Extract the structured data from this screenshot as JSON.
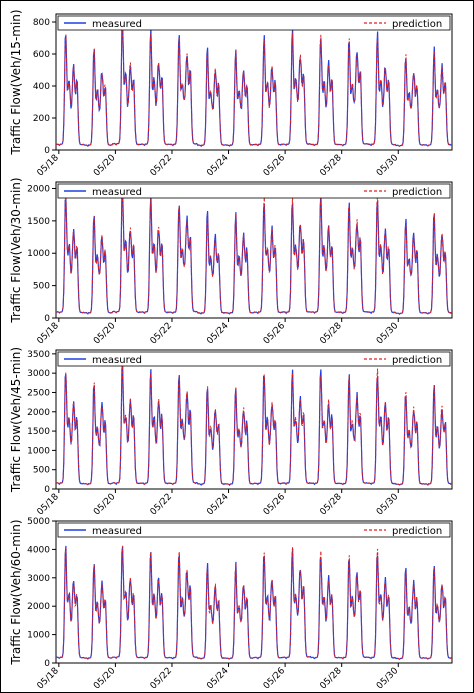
{
  "figure": {
    "border_color": "#000000",
    "measured_color": "#1f3fe0",
    "prediction_color": "#e02020"
  },
  "chart_data": [
    {
      "type": "line",
      "ylabel": "Traffic Flow(Veh/15-min)",
      "ylim": [
        0,
        850
      ],
      "yticks": [
        0,
        200,
        400,
        600,
        800
      ],
      "x_tick_labels": [
        "05/18",
        "05/20",
        "05/22",
        "05/24",
        "05/26",
        "05/28",
        "05/30"
      ],
      "legend": {
        "placement": "top",
        "entries": [
          "measured",
          "prediction"
        ]
      },
      "grid": false,
      "daily_peaks": [
        720,
        680,
        620,
        640,
        790,
        700,
        730,
        720,
        710,
        790,
        700,
        740,
        690,
        740,
        700,
        680,
        730,
        760,
        700,
        700,
        680,
        780,
        720,
        680,
        660,
        730,
        700,
        770
      ],
      "series": [
        {
          "name": "measured",
          "style": "solid"
        },
        {
          "name": "prediction",
          "style": "dashed"
        }
      ]
    },
    {
      "type": "line",
      "ylabel": "Traffic Flow(Veh/30-min)",
      "ylim": [
        0,
        2100
      ],
      "yticks": [
        0,
        500,
        1000,
        1500,
        2000
      ],
      "x_tick_labels": [
        "05/18",
        "05/20",
        "05/22",
        "05/24",
        "05/26",
        "05/28",
        "05/30"
      ],
      "legend": {
        "placement": "top",
        "entries": [
          "measured",
          "prediction"
        ]
      },
      "grid": false,
      "daily_peaks": [
        1900,
        1750,
        1600,
        1650,
        1980,
        1800,
        1850,
        1800,
        1780,
        1990,
        1800,
        1850,
        1800,
        1900,
        1820,
        1780,
        1850,
        1900,
        1850,
        1800,
        1780,
        1950,
        1850,
        1750,
        1700,
        1880,
        1800,
        1900
      ],
      "series": [
        {
          "name": "measured",
          "style": "solid"
        },
        {
          "name": "prediction",
          "style": "dashed"
        }
      ]
    },
    {
      "type": "line",
      "ylabel": "Traffic Flow(Veh/45-min)",
      "ylim": [
        0,
        3600
      ],
      "yticks": [
        0,
        500,
        1000,
        1500,
        2000,
        2500,
        3000,
        3500
      ],
      "x_tick_labels": [
        "05/18",
        "05/20",
        "05/22",
        "05/24",
        "05/26",
        "05/28",
        "05/30"
      ],
      "legend": {
        "placement": "top",
        "entries": [
          "measured",
          "prediction"
        ]
      },
      "grid": false,
      "daily_peaks": [
        3100,
        2900,
        2700,
        2800,
        3200,
        3000,
        3050,
        3000,
        2950,
        3200,
        3000,
        3050,
        2950,
        3100,
        3000,
        2900,
        3050,
        3100,
        3000,
        2950,
        2900,
        3150,
        3050,
        2900,
        2850,
        3100,
        3000,
        3150
      ],
      "series": [
        {
          "name": "measured",
          "style": "solid"
        },
        {
          "name": "prediction",
          "style": "dashed"
        }
      ]
    },
    {
      "type": "line",
      "ylabel": "Traffic Flow(Veh/60-min)",
      "ylim": [
        0,
        5000
      ],
      "yticks": [
        0,
        1000,
        2000,
        3000,
        4000,
        5000
      ],
      "x_tick_labels": [
        "05/18",
        "05/20",
        "05/22",
        "05/24",
        "05/26",
        "05/28",
        "05/30"
      ],
      "legend": {
        "placement": "top",
        "entries": [
          "measured",
          "prediction"
        ]
      },
      "grid": false,
      "daily_peaks": [
        4000,
        3800,
        3500,
        3600,
        4200,
        3900,
        3950,
        3900,
        3850,
        4200,
        3900,
        4000,
        3850,
        4100,
        3900,
        3800,
        4000,
        4350,
        3900,
        3850,
        3800,
        4100,
        3950,
        3800,
        3700,
        4100,
        3900,
        4150
      ],
      "series": [
        {
          "name": "measured",
          "style": "solid"
        },
        {
          "name": "prediction",
          "style": "dashed"
        }
      ]
    }
  ]
}
